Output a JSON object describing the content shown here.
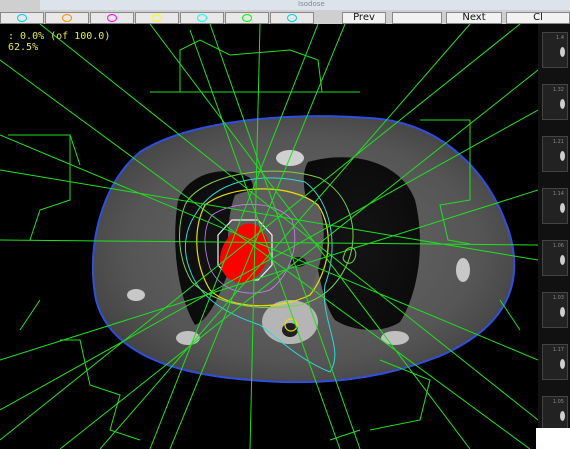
{
  "toolbar": {
    "window_title": "Isodose",
    "buttons": [
      "Prev",
      "Next",
      "Cl"
    ],
    "swatch_colors": [
      "#00c8ff",
      "#ff8c00",
      "#ff00ff",
      "#ffff00",
      "#00ffff",
      "#00ff00"
    ]
  },
  "overlay": {
    "line1": ":  0.0% (of 100.0)",
    "line2": "62.5%"
  },
  "colors": {
    "beam": "#20e020",
    "body_contour": "#2f4fe0",
    "target": "#ff0000",
    "isodose_yellow": "#e6e000",
    "isodose_cyan": "#2fd9d9",
    "isodose_white": "#f0f0f0",
    "overlay_text": "#e9e94a"
  },
  "strip": {
    "labels": [
      "1.4",
      "1.32",
      "1.21",
      "1.14",
      "1.06",
      "1.03",
      "1.17",
      "1.05"
    ]
  }
}
